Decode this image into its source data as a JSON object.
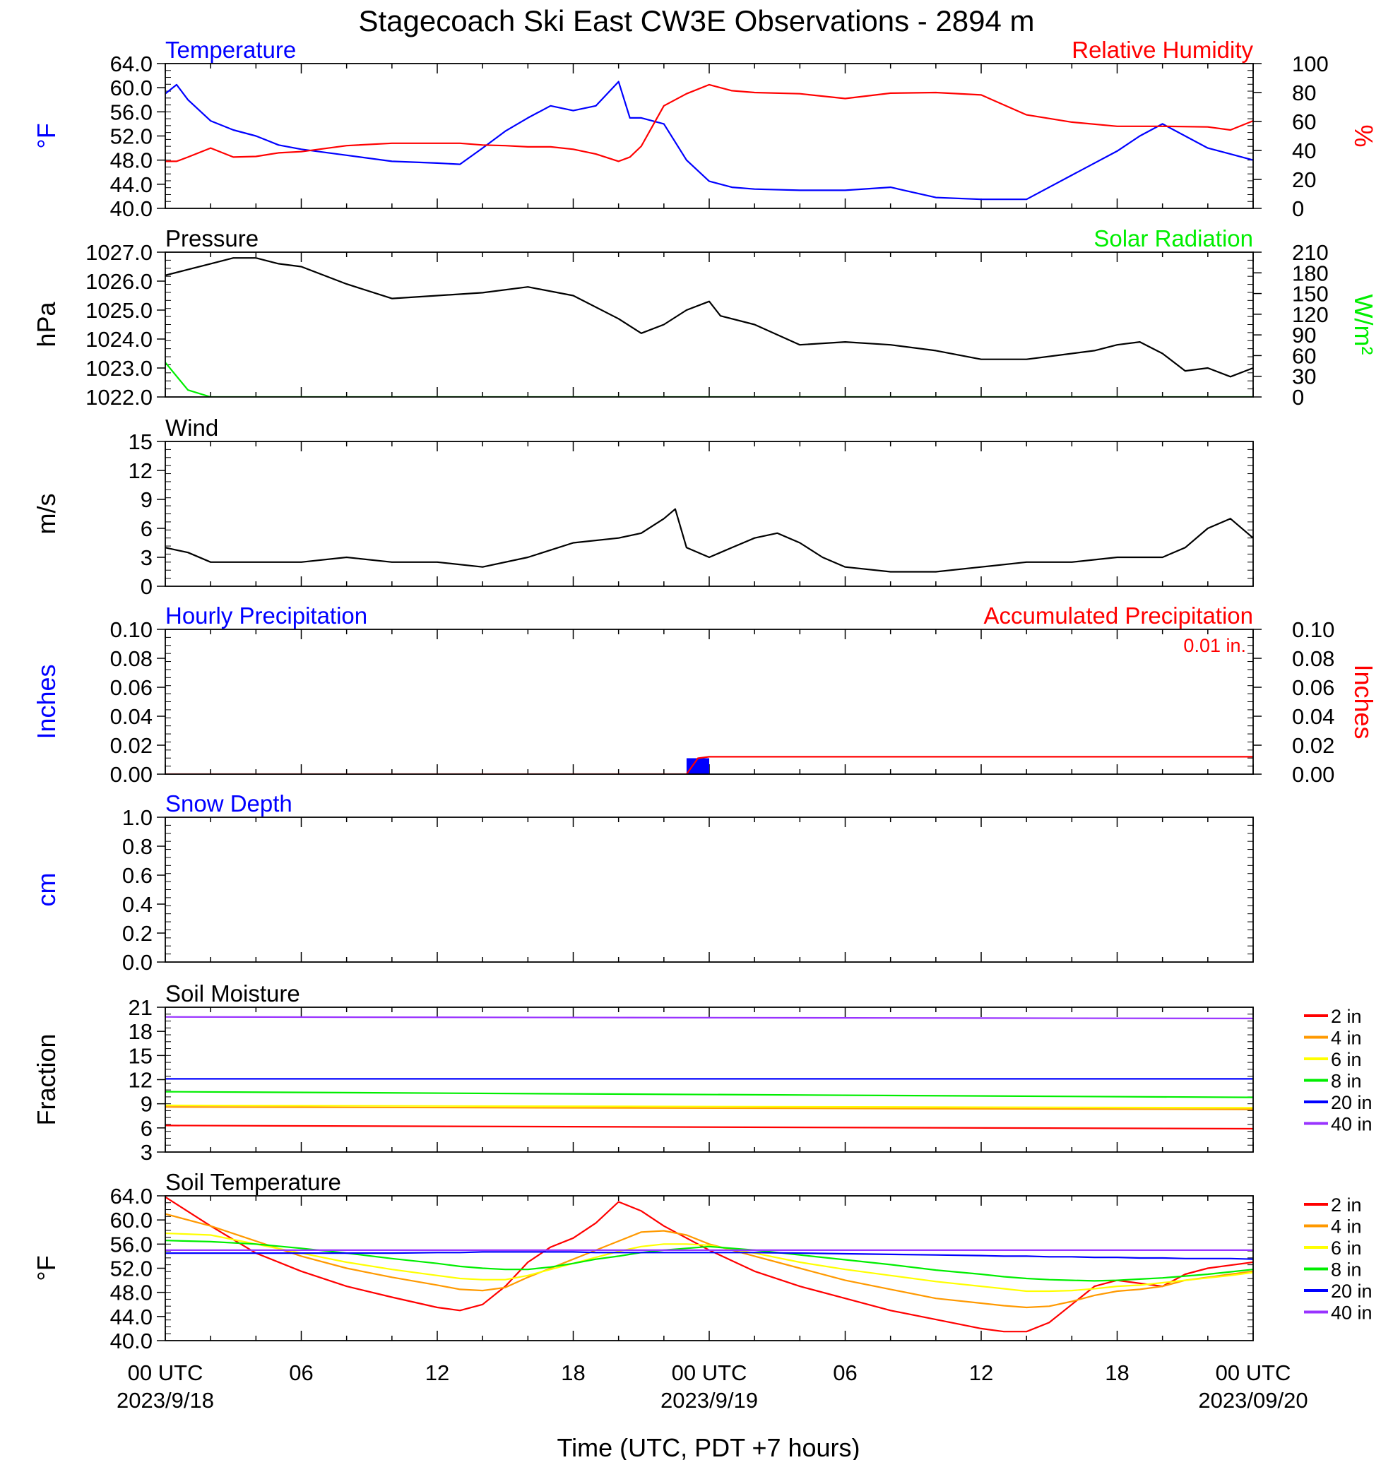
{
  "title": "Stagecoach Ski East CW3E Observations - 2894 m",
  "colors": {
    "blue": "#0000ff",
    "red": "#ff0000",
    "green": "#00ee00",
    "black": "#000000",
    "orange": "#ff9900",
    "yellow": "#ffff00",
    "purple": "#9933ff"
  },
  "x_axis": {
    "xlabel": "Time (UTC, PDT +7 hours)",
    "tick_labels": [
      "00 UTC",
      "06",
      "12",
      "18",
      "00 UTC",
      "06",
      "12",
      "18",
      "00 UTC"
    ],
    "date_labels": [
      "2023/9/18",
      "2023/9/19",
      "2023/09/20"
    ]
  },
  "chart_data": [
    {
      "type": "line",
      "title_left": "Temperature",
      "title_right": "Relative Humidity",
      "ylabel": "°F",
      "ylabel_right": "%",
      "ylim": [
        40,
        64
      ],
      "ylim_right": [
        0,
        100
      ],
      "yticks": [
        "64.0",
        "60.0",
        "56.0",
        "52.0",
        "48.0",
        "44.0",
        "40.0"
      ],
      "yticks_right": [
        "100",
        "80",
        "60",
        "40",
        "20",
        "0"
      ],
      "x_hours": [
        0,
        0.5,
        1,
        2,
        3,
        4,
        5,
        6,
        8,
        10,
        12,
        13,
        14,
        15,
        16,
        17,
        18,
        19,
        20,
        20.5,
        21,
        22,
        23,
        24,
        25,
        26,
        28,
        30,
        32,
        34,
        36,
        38,
        40,
        42,
        43,
        44,
        46,
        47,
        48
      ],
      "series": [
        {
          "color": "blue",
          "axis": "left",
          "values": [
            59,
            60.5,
            58,
            54.5,
            53,
            52,
            50.5,
            49.8,
            48.8,
            47.8,
            47.5,
            47.3,
            50,
            52.8,
            55,
            57,
            56.2,
            57,
            61,
            55,
            55,
            54,
            48,
            44.5,
            43.5,
            43.2,
            43,
            43,
            43.5,
            41.8,
            41.5,
            41.5,
            45.5,
            49.5,
            52,
            54,
            50,
            49,
            48
          ]
        },
        {
          "color": "red",
          "axis": "left",
          "values": [
            47.8,
            47.8,
            48.5,
            50,
            48.5,
            48.6,
            49.2,
            49.4,
            50.4,
            50.8,
            50.8,
            50.8,
            50.5,
            50.4,
            50.2,
            50.2,
            49.8,
            49,
            47.8,
            48.5,
            50.3,
            57,
            59,
            60.5,
            59.5,
            59.2,
            59,
            58.2,
            59.1,
            59.2,
            58.8,
            55.5,
            54.3,
            53.6,
            53.6,
            53.6,
            53.5,
            53,
            54.5
          ]
        }
      ]
    },
    {
      "type": "line",
      "title_left": "Pressure",
      "title_right": "Solar Radiation",
      "ylabel": "hPa",
      "ylabel_right": "W/m²",
      "ylim": [
        1022,
        1027
      ],
      "ylim_right": [
        0,
        210
      ],
      "yticks": [
        "1027.0",
        "1026.0",
        "1025.0",
        "1024.0",
        "1023.0",
        "1022.0"
      ],
      "yticks_right": [
        "210",
        "180",
        "150",
        "120",
        "90",
        "60",
        "30",
        "0"
      ],
      "x_hours": [
        0,
        1,
        2,
        3,
        4,
        5,
        6,
        8,
        10,
        12,
        14,
        16,
        18,
        20,
        21,
        22,
        23,
        24,
        24.5,
        26,
        28,
        30,
        32,
        34,
        36,
        38,
        40,
        41,
        42,
        43,
        44,
        45,
        46,
        47,
        48
      ],
      "series": [
        {
          "color": "black",
          "axis": "left",
          "values": [
            1026.2,
            1026.4,
            1026.6,
            1026.8,
            1026.8,
            1026.6,
            1026.5,
            1025.9,
            1025.4,
            1025.5,
            1025.6,
            1025.8,
            1025.5,
            1024.7,
            1024.2,
            1024.5,
            1025.0,
            1025.3,
            1024.8,
            1024.5,
            1023.8,
            1023.9,
            1023.8,
            1023.6,
            1023.3,
            1023.3,
            1023.5,
            1023.6,
            1023.8,
            1023.9,
            1023.5,
            1022.9,
            1023.0,
            1022.7,
            1023.0
          ]
        },
        {
          "color": "green",
          "axis": "right",
          "values": [
            50,
            10,
            0,
            0,
            0,
            0,
            0,
            0,
            0,
            0,
            0,
            0,
            0,
            0,
            0,
            0,
            0,
            0,
            0,
            0,
            0,
            0,
            0,
            0,
            0,
            0,
            0,
            0,
            0,
            0,
            0,
            0,
            0,
            0,
            0
          ]
        }
      ]
    },
    {
      "type": "line",
      "title_left": "Wind",
      "ylabel": "m/s",
      "ylim": [
        0,
        15
      ],
      "yticks": [
        "15",
        "12",
        "9",
        "6",
        "3",
        "0"
      ],
      "x_hours": [
        0,
        1,
        2,
        3,
        4,
        6,
        8,
        10,
        12,
        14,
        16,
        18,
        20,
        21,
        22,
        22.5,
        23,
        24,
        25,
        26,
        27,
        28,
        29,
        30,
        32,
        34,
        36,
        38,
        40,
        42,
        44,
        45,
        46,
        47,
        48
      ],
      "series": [
        {
          "color": "black",
          "values": [
            4,
            3.5,
            2.5,
            2.5,
            2.5,
            2.5,
            3,
            2.5,
            2.5,
            2,
            3,
            4.5,
            5,
            5.5,
            7,
            8,
            4,
            3,
            4,
            5,
            5.5,
            4.5,
            3,
            2,
            1.5,
            1.5,
            2,
            2.5,
            2.5,
            3,
            3,
            4,
            6,
            7,
            5
          ]
        }
      ]
    },
    {
      "type": "bar",
      "title_left": "Hourly Precipitation",
      "title_right": "Accumulated Precipitation",
      "annotation": "0.01 in.",
      "ylabel": "Inches",
      "ylabel_right": "Inches",
      "ylim": [
        0,
        0.1
      ],
      "yticks": [
        "0.10",
        "0.08",
        "0.06",
        "0.04",
        "0.02",
        "0.00"
      ],
      "yticks_right": [
        "0.10",
        "0.08",
        "0.06",
        "0.04",
        "0.02",
        "0.00"
      ],
      "bars": [
        {
          "x_start": 23,
          "x_end": 24,
          "value": 0.011,
          "color": "blue"
        }
      ],
      "series": [
        {
          "color": "red",
          "x_hours": [
            0,
            23,
            23.5,
            24,
            48
          ],
          "values": [
            0,
            0,
            0.011,
            0.012,
            0.012
          ]
        }
      ]
    },
    {
      "type": "line",
      "title_left": "Snow Depth",
      "ylabel": "cm",
      "ylim": [
        0,
        1
      ],
      "yticks": [
        "1.0",
        "0.8",
        "0.6",
        "0.4",
        "0.2",
        "0.0"
      ],
      "series": []
    },
    {
      "type": "line",
      "title_left": "Soil Moisture",
      "ylabel": "Fraction",
      "ylim": [
        3,
        21
      ],
      "yticks": [
        "21",
        "18",
        "15",
        "12",
        "9",
        "6",
        "3"
      ],
      "legend": [
        "2 in",
        "4 in",
        "6 in",
        "8 in",
        "20 in",
        "40 in"
      ],
      "x_hours": [
        0,
        48
      ],
      "series": [
        {
          "name": "2 in",
          "color": "red",
          "values": [
            6.3,
            5.9
          ]
        },
        {
          "name": "4 in",
          "color": "orange",
          "values": [
            8.6,
            8.3
          ]
        },
        {
          "name": "6 in",
          "color": "yellow",
          "values": [
            8.8,
            8.5
          ]
        },
        {
          "name": "8 in",
          "color": "green",
          "values": [
            10.5,
            9.8
          ]
        },
        {
          "name": "20 in",
          "color": "blue",
          "values": [
            12.1,
            12.1
          ]
        },
        {
          "name": "40 in",
          "color": "purple",
          "values": [
            19.8,
            19.6
          ]
        }
      ]
    },
    {
      "type": "line",
      "title_left": "Soil Temperature",
      "ylabel": "°F",
      "ylim": [
        40,
        64
      ],
      "yticks": [
        "64.0",
        "60.0",
        "56.0",
        "52.0",
        "48.0",
        "44.0",
        "40.0"
      ],
      "legend": [
        "2 in",
        "4 in",
        "6 in",
        "8 in",
        "20 in",
        "40 in"
      ],
      "x_hours": [
        0,
        2,
        4,
        6,
        8,
        10,
        12,
        13,
        14,
        15,
        16,
        17,
        18,
        19,
        20,
        21,
        22,
        23,
        24,
        26,
        28,
        30,
        32,
        34,
        36,
        37,
        38,
        39,
        40,
        41,
        42,
        43,
        44,
        45,
        46,
        47,
        48
      ],
      "series": [
        {
          "name": "2 in",
          "color": "red",
          "values": [
            63.8,
            59,
            54.5,
            51.5,
            49,
            47.2,
            45.5,
            45,
            46,
            49,
            53,
            55.5,
            57,
            59.5,
            63,
            61.5,
            59,
            57,
            55,
            51.5,
            49,
            47,
            45,
            43.5,
            42,
            41.5,
            41.5,
            43,
            46,
            49,
            50,
            49.5,
            49,
            51,
            52,
            52.5,
            53
          ]
        },
        {
          "name": "4 in",
          "color": "orange",
          "values": [
            61,
            59,
            56.5,
            54,
            52,
            50.5,
            49.2,
            48.5,
            48.3,
            48.8,
            50.5,
            52,
            53.5,
            55,
            56.5,
            58,
            58.2,
            57.5,
            56,
            54,
            52,
            50,
            48.5,
            47,
            46.2,
            45.8,
            45.5,
            45.7,
            46.5,
            47.5,
            48.2,
            48.5,
            49,
            50,
            50.5,
            51,
            51.5
          ]
        },
        {
          "name": "6 in",
          "color": "yellow",
          "values": [
            57.8,
            57.5,
            56,
            54.5,
            53,
            51.8,
            50.8,
            50.3,
            50.1,
            50.1,
            50.8,
            51.8,
            52.8,
            53.8,
            54.8,
            55.6,
            56,
            56,
            55.8,
            54.5,
            53,
            51.8,
            50.8,
            49.8,
            49,
            48.6,
            48.2,
            48.2,
            48.3,
            48.6,
            49,
            49.2,
            49.6,
            50,
            50.4,
            50.8,
            51.3
          ]
        },
        {
          "name": "8 in",
          "color": "green",
          "values": [
            56.6,
            56.4,
            56,
            55.3,
            54.5,
            53.6,
            52.8,
            52.3,
            52,
            51.8,
            51.8,
            52.2,
            52.8,
            53.5,
            54,
            54.6,
            55,
            55.3,
            55.6,
            55,
            54.2,
            53.4,
            52.6,
            51.7,
            51,
            50.6,
            50.3,
            50.1,
            50,
            49.9,
            50,
            50.2,
            50.4,
            50.7,
            51,
            51.4,
            51.8
          ]
        },
        {
          "name": "20 in",
          "color": "blue",
          "values": [
            54.5,
            54.5,
            54.5,
            54.5,
            54.5,
            54.5,
            54.6,
            54.6,
            54.7,
            54.7,
            54.7,
            54.7,
            54.7,
            54.6,
            54.6,
            54.6,
            54.6,
            54.6,
            54.6,
            54.6,
            54.5,
            54.4,
            54.3,
            54.2,
            54.1,
            54,
            54,
            53.9,
            53.9,
            53.8,
            53.8,
            53.7,
            53.7,
            53.6,
            53.6,
            53.6,
            53.5
          ]
        },
        {
          "name": "40 in",
          "color": "purple",
          "values": [
            55,
            55,
            55,
            55,
            55,
            55,
            55,
            55,
            55,
            55,
            55,
            55,
            55,
            55,
            55,
            55,
            55,
            55,
            55,
            55,
            55,
            55,
            55,
            55,
            55,
            55,
            55,
            55,
            55,
            55,
            55,
            55,
            55,
            55,
            55,
            55,
            55
          ]
        }
      ]
    }
  ]
}
